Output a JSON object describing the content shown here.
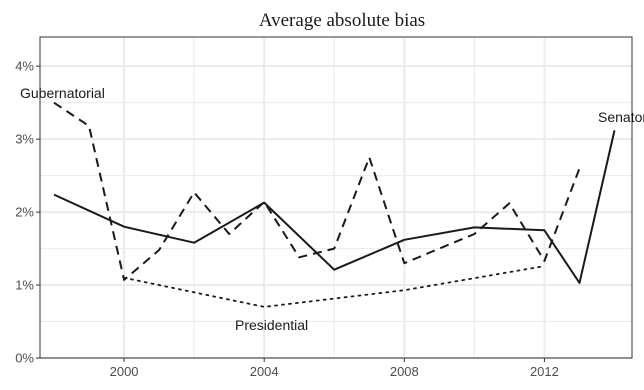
{
  "chart_data": {
    "type": "line",
    "title": "Average absolute bias",
    "xlabel": "",
    "ylabel": "",
    "xlim": [
      1997.6,
      2014.5
    ],
    "ylim": [
      0,
      4.4
    ],
    "x_ticks": [
      2000,
      2004,
      2008,
      2012
    ],
    "x_tick_labels": [
      "2000",
      "2004",
      "2008",
      "2012"
    ],
    "y_ticks": [
      0,
      1,
      2,
      3,
      4
    ],
    "y_tick_labels": [
      "0%",
      "1%",
      "2%",
      "3%",
      "4%"
    ],
    "grid": true,
    "legend": "none",
    "series": [
      {
        "name": "Senatorial",
        "line_style": "solid",
        "x": [
          1998,
          2000,
          2002,
          2004,
          2006,
          2008,
          2010,
          2012,
          2013,
          2014
        ],
        "y": [
          2.24,
          1.8,
          1.58,
          2.13,
          1.21,
          1.62,
          1.79,
          1.75,
          1.03,
          3.12
        ]
      },
      {
        "name": "Gubernatorial",
        "line_style": "dashed",
        "x": [
          1998,
          1999,
          2000,
          2001,
          2002,
          2003,
          2004,
          2005,
          2006,
          2007,
          2008,
          2009,
          2010,
          2011,
          2012,
          2013
        ],
        "y": [
          3.5,
          3.18,
          1.07,
          1.48,
          2.27,
          1.7,
          2.14,
          1.38,
          1.5,
          2.75,
          1.3,
          1.5,
          1.7,
          2.12,
          1.33,
          2.6
        ]
      },
      {
        "name": "Presidential",
        "line_style": "dotted",
        "x": [
          2000,
          2004,
          2008,
          2012
        ],
        "y": [
          1.1,
          0.7,
          0.93,
          1.26
        ]
      }
    ],
    "colors": {
      "line": "#1a1a1a",
      "grid": "#ebebeb",
      "axis": "#333333",
      "text": "#4d4d4d"
    }
  }
}
